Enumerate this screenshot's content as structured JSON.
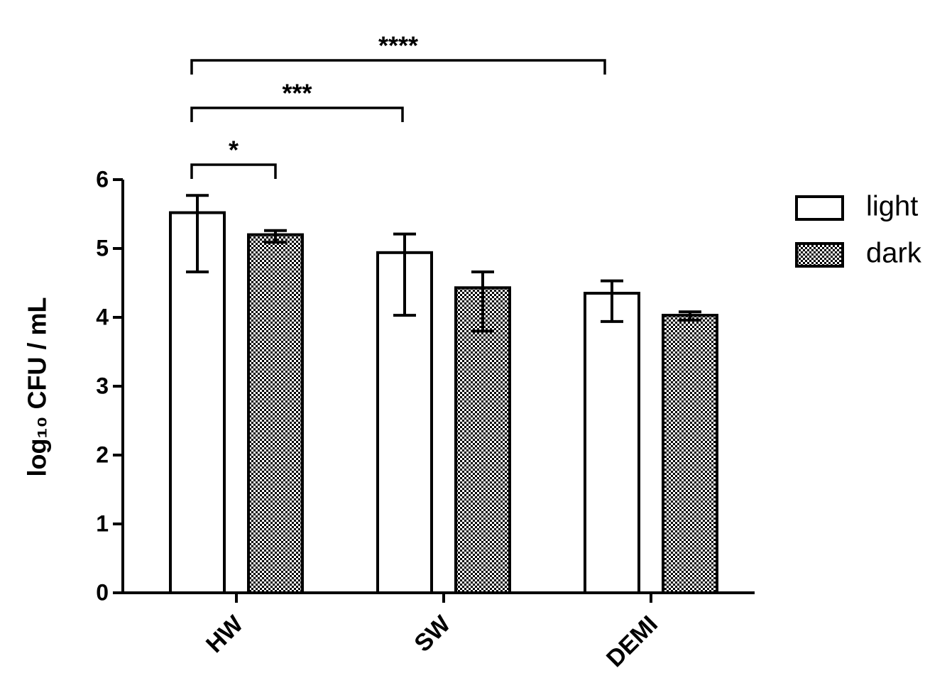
{
  "chart_data": {
    "type": "bar",
    "y_label": "log₁₀ CFU / mL",
    "categories": [
      "HW",
      "SW",
      "DEMI"
    ],
    "series": [
      {
        "name": "light",
        "color": "#ffffff",
        "values": [
          5.52,
          4.94,
          4.35
        ],
        "lower": [
          4.66,
          4.03,
          3.94
        ],
        "upper": [
          5.77,
          5.21,
          4.53
        ]
      },
      {
        "name": "dark",
        "color": "#000000",
        "pattern": "checker",
        "values": [
          5.2,
          4.43,
          4.03
        ],
        "lower": [
          5.09,
          3.8,
          3.96
        ],
        "upper": [
          5.26,
          4.66,
          4.08
        ]
      }
    ],
    "ylim": [
      0,
      6
    ],
    "yticks": [
      0,
      1,
      2,
      3,
      4,
      5,
      6
    ],
    "annotations": [
      "*",
      "***",
      "****"
    ],
    "legend": "top-right"
  }
}
